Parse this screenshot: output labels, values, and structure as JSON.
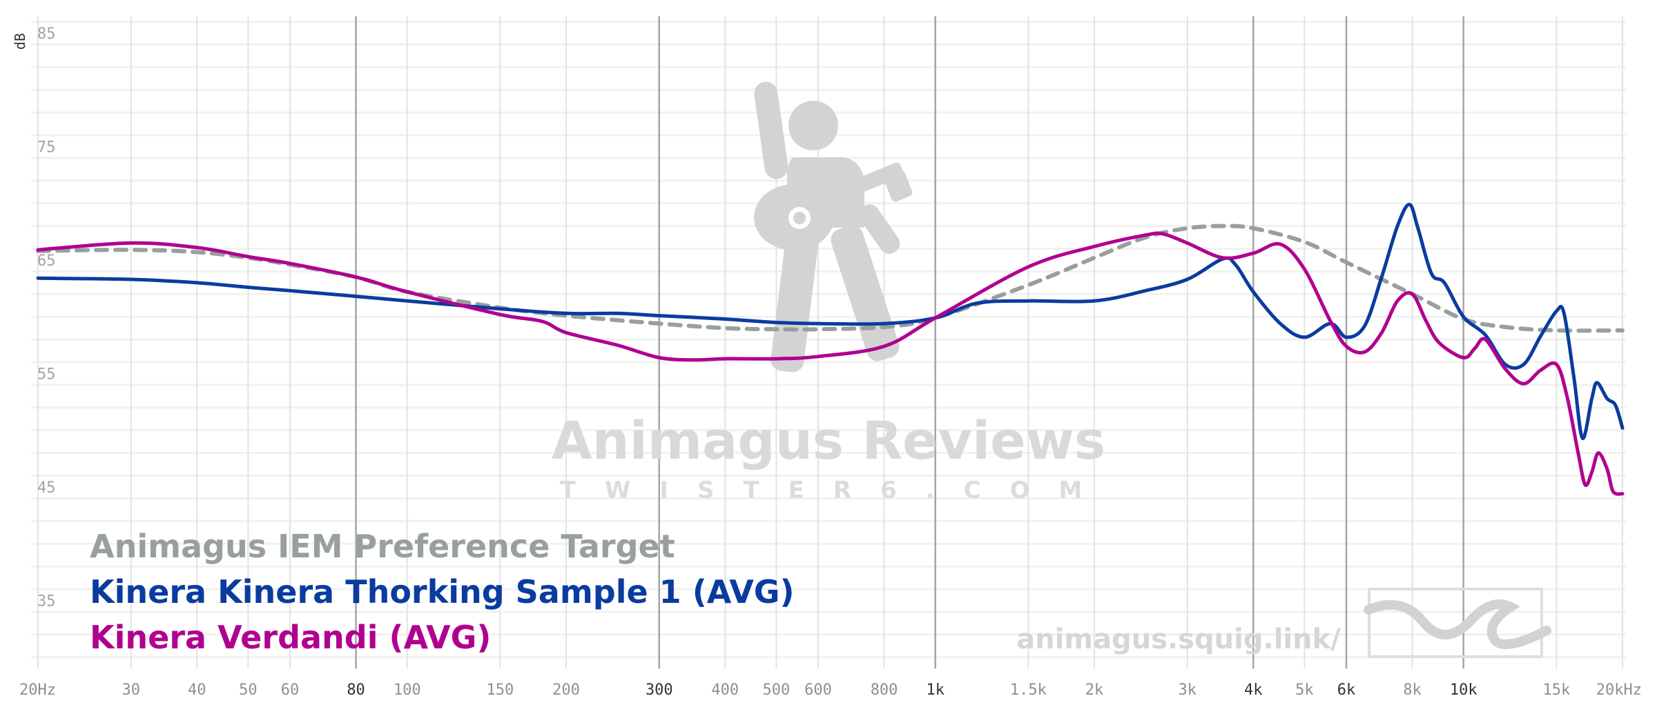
{
  "chart_data": {
    "type": "line",
    "title": "",
    "xlabel": "",
    "ylabel": "dB",
    "x_scale": "log",
    "xlim": [
      20,
      20000
    ],
    "ylim": [
      30,
      87
    ],
    "x_ticks": [
      {
        "v": 20,
        "label": "20Hz",
        "major": false
      },
      {
        "v": 30,
        "label": "30",
        "major": false
      },
      {
        "v": 40,
        "label": "40",
        "major": false
      },
      {
        "v": 50,
        "label": "50",
        "major": false
      },
      {
        "v": 60,
        "label": "60",
        "major": false
      },
      {
        "v": 80,
        "label": "80",
        "major": true
      },
      {
        "v": 100,
        "label": "100",
        "major": false
      },
      {
        "v": 150,
        "label": "150",
        "major": false
      },
      {
        "v": 200,
        "label": "200",
        "major": false
      },
      {
        "v": 300,
        "label": "300",
        "major": true
      },
      {
        "v": 400,
        "label": "400",
        "major": false
      },
      {
        "v": 500,
        "label": "500",
        "major": false
      },
      {
        "v": 600,
        "label": "600",
        "major": false
      },
      {
        "v": 800,
        "label": "800",
        "major": false
      },
      {
        "v": 1000,
        "label": "1k",
        "major": true
      },
      {
        "v": 1500,
        "label": "1.5k",
        "major": false
      },
      {
        "v": 2000,
        "label": "2k",
        "major": false
      },
      {
        "v": 3000,
        "label": "3k",
        "major": false
      },
      {
        "v": 4000,
        "label": "4k",
        "major": true
      },
      {
        "v": 5000,
        "label": "5k",
        "major": false
      },
      {
        "v": 6000,
        "label": "6k",
        "major": true
      },
      {
        "v": 8000,
        "label": "8k",
        "major": false
      },
      {
        "v": 10000,
        "label": "10k",
        "major": true
      },
      {
        "v": 15000,
        "label": "15k",
        "major": false
      },
      {
        "v": 20000,
        "label": "20kHz",
        "major": false
      }
    ],
    "y_ticks": [
      {
        "v": 85,
        "label": "85"
      },
      {
        "v": 75,
        "label": "75"
      },
      {
        "v": 65,
        "label": "65"
      },
      {
        "v": 55,
        "label": "55"
      },
      {
        "v": 45,
        "label": "45"
      },
      {
        "v": 35,
        "label": "35"
      }
    ],
    "grid": true,
    "legend_position": "bottom-left",
    "series": [
      {
        "name": "Animagus IEM Preference Target",
        "color": "#97a09d",
        "dashed": true,
        "points": [
          [
            20,
            65.8
          ],
          [
            30,
            65.9
          ],
          [
            40,
            65.7
          ],
          [
            50,
            65.2
          ],
          [
            60,
            64.6
          ],
          [
            80,
            63.5
          ],
          [
            100,
            62.2
          ],
          [
            150,
            60.8
          ],
          [
            200,
            60.1
          ],
          [
            300,
            59.4
          ],
          [
            400,
            59.0
          ],
          [
            500,
            58.9
          ],
          [
            600,
            58.9
          ],
          [
            800,
            59.1
          ],
          [
            1000,
            59.9
          ],
          [
            1500,
            62.8
          ],
          [
            2000,
            65.2
          ],
          [
            2500,
            67.0
          ],
          [
            3000,
            67.8
          ],
          [
            3500,
            68.0
          ],
          [
            4000,
            67.8
          ],
          [
            5000,
            66.6
          ],
          [
            6000,
            64.8
          ],
          [
            8000,
            62.0
          ],
          [
            10000,
            59.8
          ],
          [
            12000,
            59.1
          ],
          [
            15000,
            58.8
          ],
          [
            20000,
            58.8
          ]
        ]
      },
      {
        "name": "Kinera Kinera Thorking Sample 1 (AVG)",
        "color": "#0a3c9f",
        "dashed": false,
        "points": [
          [
            20,
            63.4
          ],
          [
            30,
            63.3
          ],
          [
            40,
            63.0
          ],
          [
            50,
            62.6
          ],
          [
            60,
            62.3
          ],
          [
            80,
            61.8
          ],
          [
            100,
            61.4
          ],
          [
            150,
            60.7
          ],
          [
            200,
            60.3
          ],
          [
            250,
            60.3
          ],
          [
            300,
            60.1
          ],
          [
            400,
            59.8
          ],
          [
            500,
            59.5
          ],
          [
            600,
            59.4
          ],
          [
            800,
            59.4
          ],
          [
            1000,
            59.9
          ],
          [
            1200,
            61.2
          ],
          [
            1500,
            61.4
          ],
          [
            2000,
            61.4
          ],
          [
            2500,
            62.3
          ],
          [
            3000,
            63.3
          ],
          [
            3500,
            65.1
          ],
          [
            3700,
            64.6
          ],
          [
            4000,
            62.2
          ],
          [
            4500,
            59.4
          ],
          [
            5000,
            58.2
          ],
          [
            5600,
            59.4
          ],
          [
            6000,
            58.2
          ],
          [
            6500,
            59.2
          ],
          [
            7000,
            63.5
          ],
          [
            7500,
            68.0
          ],
          [
            7900,
            69.9
          ],
          [
            8200,
            67.8
          ],
          [
            8700,
            63.8
          ],
          [
            9200,
            63.0
          ],
          [
            10000,
            60.0
          ],
          [
            11000,
            58.4
          ],
          [
            12000,
            55.8
          ],
          [
            13000,
            55.8
          ],
          [
            14000,
            58.3
          ],
          [
            15000,
            60.5
          ],
          [
            15500,
            60.3
          ],
          [
            16200,
            54.5
          ],
          [
            16800,
            49.3
          ],
          [
            17500,
            52.8
          ],
          [
            17900,
            54.2
          ],
          [
            18700,
            52.8
          ],
          [
            19400,
            52.2
          ],
          [
            20000,
            50.2
          ]
        ]
      },
      {
        "name": "Kinera Verdandi (AVG)",
        "color": "#b0008f",
        "dashed": false,
        "points": [
          [
            20,
            65.9
          ],
          [
            30,
            66.5
          ],
          [
            40,
            66.1
          ],
          [
            50,
            65.3
          ],
          [
            60,
            64.7
          ],
          [
            80,
            63.5
          ],
          [
            100,
            62.2
          ],
          [
            150,
            60.2
          ],
          [
            180,
            59.6
          ],
          [
            200,
            58.6
          ],
          [
            250,
            57.5
          ],
          [
            300,
            56.4
          ],
          [
            350,
            56.2
          ],
          [
            400,
            56.3
          ],
          [
            500,
            56.3
          ],
          [
            600,
            56.5
          ],
          [
            800,
            57.4
          ],
          [
            1000,
            59.9
          ],
          [
            1500,
            64.4
          ],
          [
            2000,
            66.2
          ],
          [
            2500,
            67.2
          ],
          [
            2700,
            67.3
          ],
          [
            3000,
            66.5
          ],
          [
            3500,
            65.2
          ],
          [
            4000,
            65.6
          ],
          [
            4500,
            66.4
          ],
          [
            5000,
            64.2
          ],
          [
            5600,
            59.6
          ],
          [
            6000,
            57.4
          ],
          [
            6500,
            56.9
          ],
          [
            7000,
            58.6
          ],
          [
            7500,
            61.4
          ],
          [
            8000,
            62.0
          ],
          [
            8500,
            59.6
          ],
          [
            9000,
            57.7
          ],
          [
            10000,
            56.4
          ],
          [
            10500,
            57.2
          ],
          [
            11000,
            58.0
          ],
          [
            12000,
            55.4
          ],
          [
            13000,
            54.1
          ],
          [
            14000,
            55.3
          ],
          [
            15000,
            55.8
          ],
          [
            15700,
            53.0
          ],
          [
            16500,
            47.9
          ],
          [
            17000,
            45.2
          ],
          [
            17500,
            46.3
          ],
          [
            18000,
            48.0
          ],
          [
            18700,
            46.6
          ],
          [
            19200,
            44.6
          ],
          [
            20000,
            44.4
          ]
        ]
      }
    ]
  },
  "watermark": {
    "title": "Animagus Reviews",
    "subtitle": "TWISTER6.COM",
    "site_url": "animagus.squig.link/",
    "logo_icon": "guitarist-icon",
    "badge_icon": "squiglink-icon"
  }
}
